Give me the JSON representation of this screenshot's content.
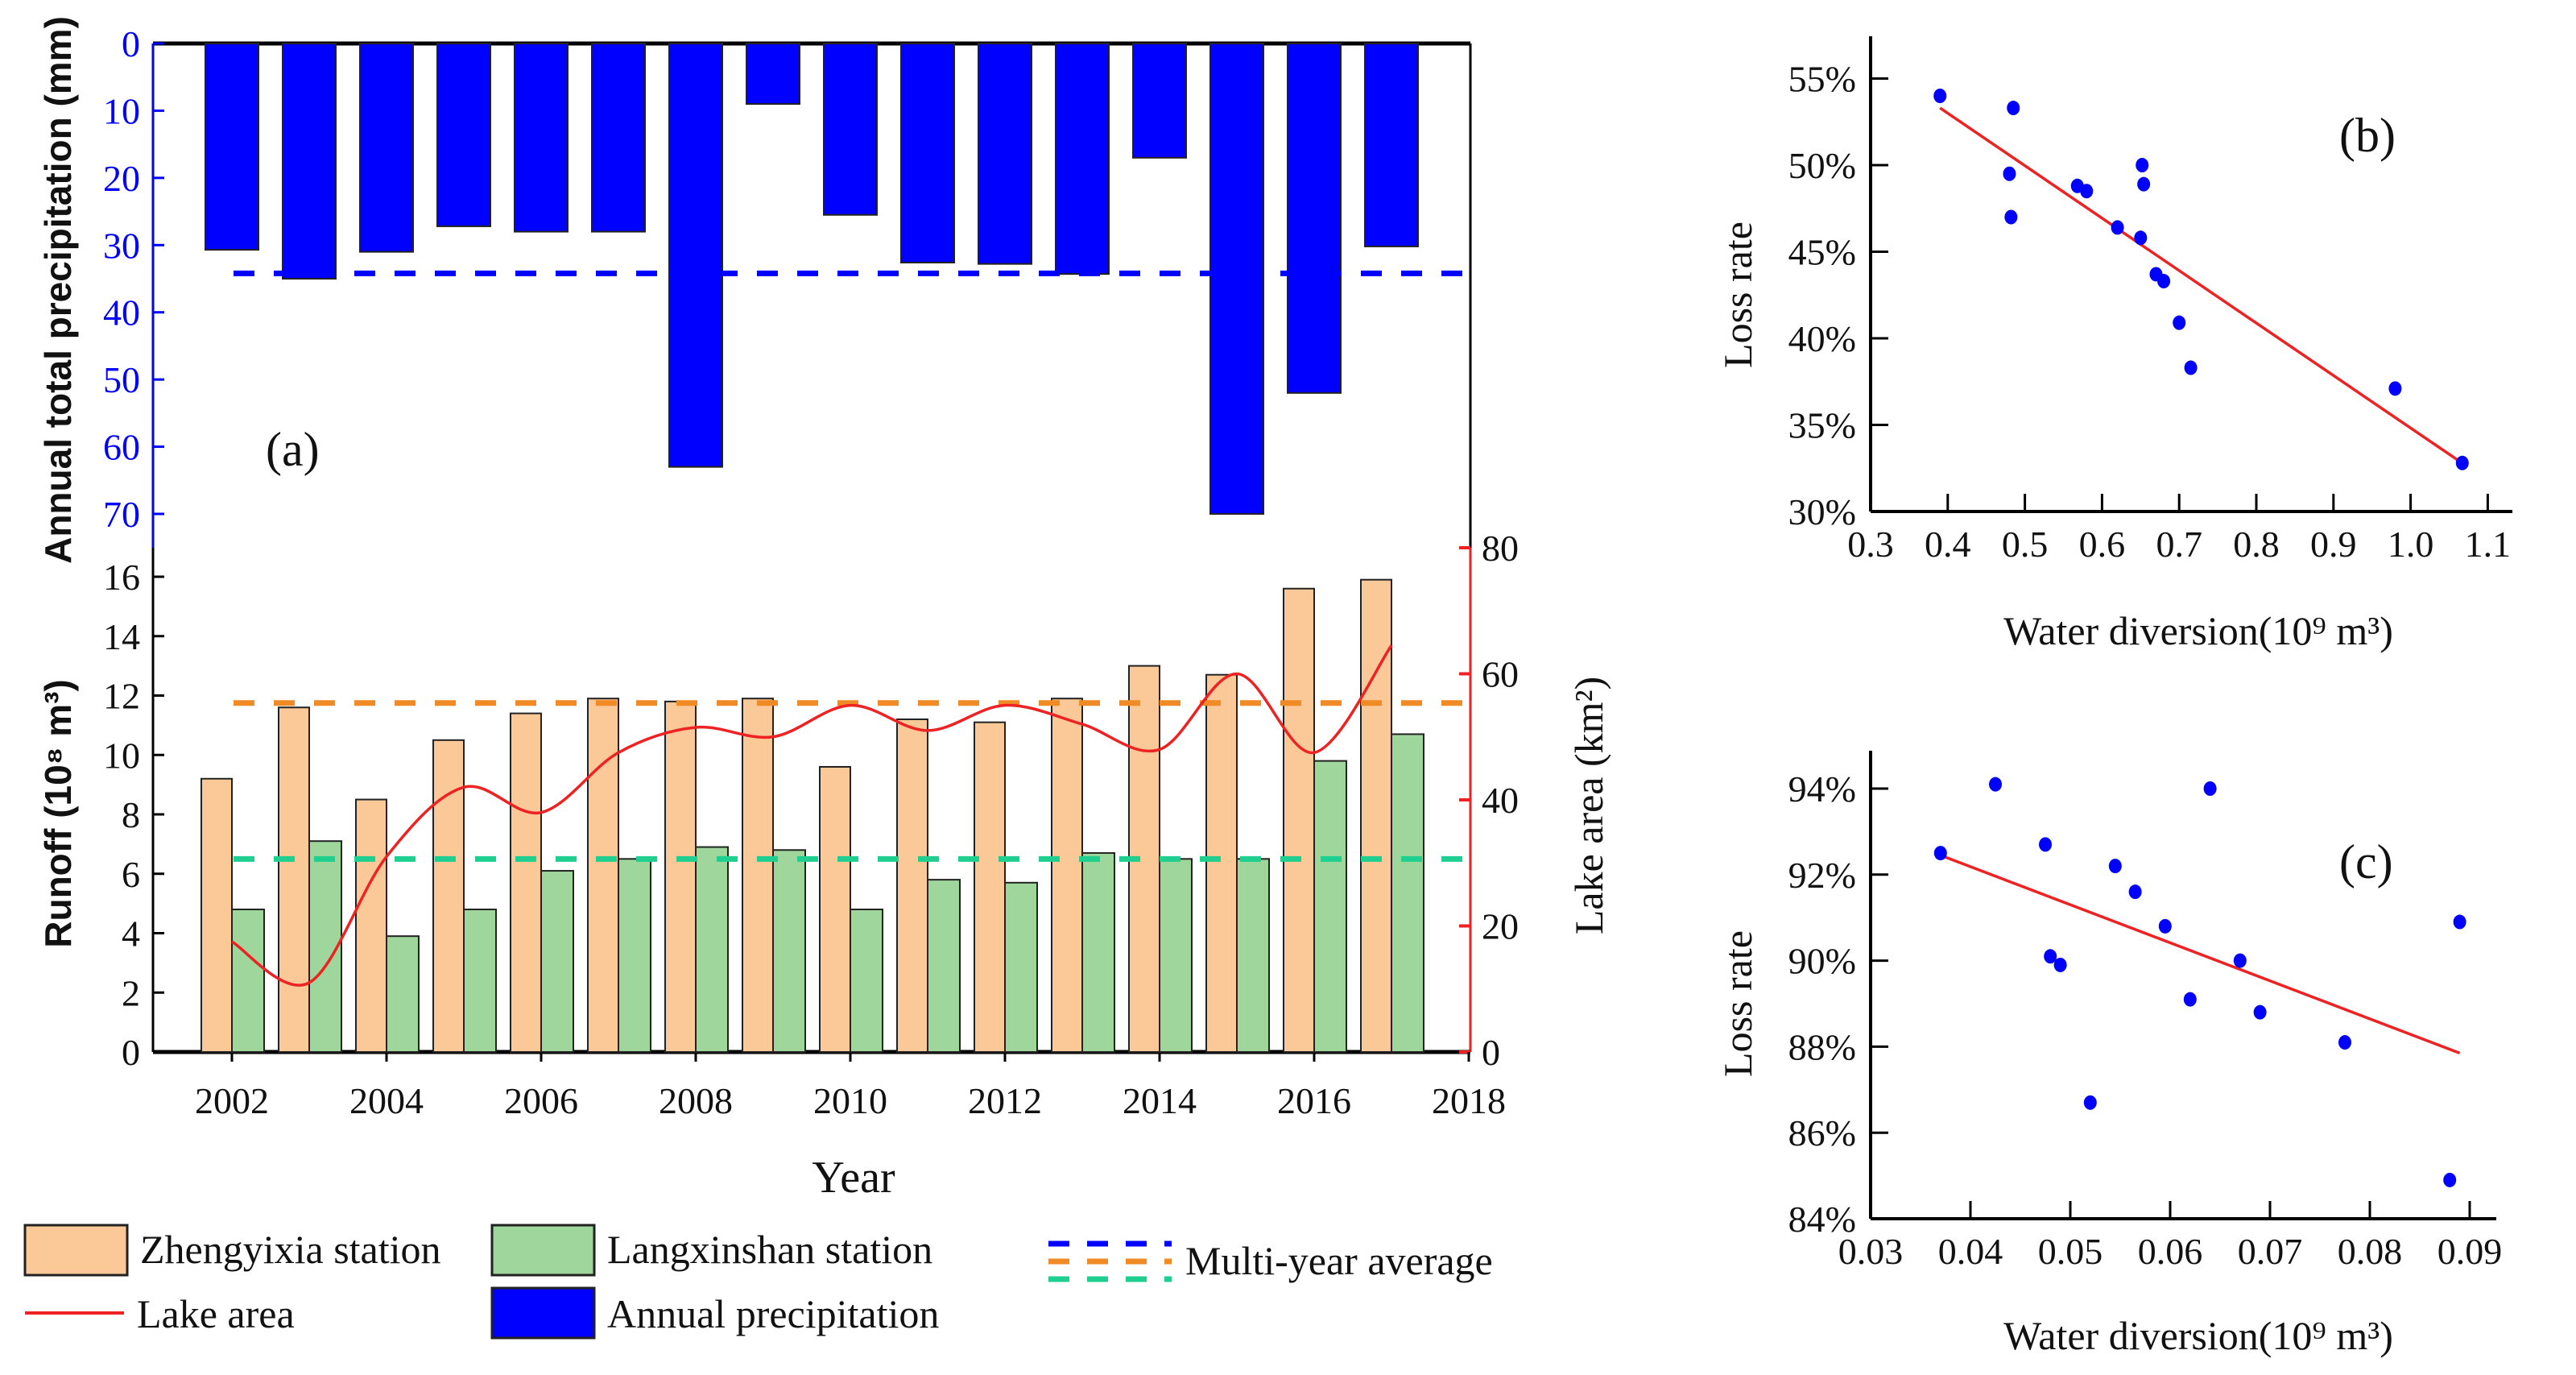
{
  "chart_data": [
    {
      "type": "bar+line",
      "panel_label": "(a)",
      "xlabel": "Year",
      "x_ticks": [
        "2002",
        "2004",
        "2006",
        "2008",
        "2010",
        "2012",
        "2014",
        "2016",
        "2018"
      ],
      "categories": [
        2002,
        2003,
        2004,
        2005,
        2006,
        2007,
        2008,
        2009,
        2010,
        2011,
        2012,
        2013,
        2014,
        2015,
        2016,
        2017
      ],
      "precipitation": {
        "ylabel": "Annual total precipitation (mm)",
        "ylim": [
          0,
          70
        ],
        "y_ticks": [
          "0",
          "10",
          "20",
          "30",
          "40",
          "50",
          "60",
          "70"
        ],
        "axis_inverted": true,
        "values": [
          30.7,
          35.0,
          31.0,
          27.2,
          28.0,
          28.0,
          63.0,
          9.0,
          25.5,
          32.6,
          32.8,
          34.3,
          17.0,
          70.0,
          52.0,
          30.2
        ],
        "average": 34.2,
        "color": "#0000ff"
      },
      "runoff": {
        "ylabel": "Runoff (10⁸ m³)",
        "ylim": [
          0,
          16
        ],
        "y_ticks": [
          "0",
          "2",
          "4",
          "6",
          "8",
          "10",
          "12",
          "14",
          "16"
        ],
        "series": [
          {
            "name": "Zhengyixia station",
            "color": "#fbc897",
            "values": [
              9.2,
              11.6,
              8.5,
              10.5,
              11.4,
              11.9,
              11.8,
              11.9,
              9.6,
              11.2,
              11.1,
              11.9,
              13.0,
              12.7,
              15.6,
              15.9
            ],
            "average": 11.75,
            "avg_color": "#f08a24"
          },
          {
            "name": "Langxinshan station",
            "color": "#9ed69b",
            "values": [
              4.8,
              7.1,
              3.9,
              4.8,
              6.1,
              6.5,
              6.9,
              6.8,
              4.8,
              5.8,
              5.7,
              6.7,
              6.5,
              6.5,
              9.8,
              10.7
            ],
            "average": 6.5,
            "avg_color": "#1fcf8f"
          }
        ]
      },
      "lake_area": {
        "ylabel": "Lake area (km²)",
        "ylim": [
          0,
          80
        ],
        "y_ticks": [
          "0",
          "20",
          "40",
          "60",
          "80"
        ],
        "x": [
          2002,
          2003,
          2004,
          2005,
          2006,
          2007,
          2008,
          2009,
          2010,
          2011,
          2012,
          2013,
          2014,
          2015,
          2016,
          2017
        ],
        "values": [
          17.5,
          11.0,
          31.0,
          42.0,
          38.0,
          47.5,
          51.5,
          50.0,
          55.0,
          51.0,
          55.0,
          52.0,
          48.0,
          60.0,
          47.5,
          64.5
        ],
        "color": "#ee2222"
      },
      "legend": {
        "zhengyixia": "Zhengyixia station",
        "langxinshan": "Langxinshan station",
        "average": "Multi-year average",
        "lake": "Lake area",
        "precip": "Annual precipitation"
      }
    },
    {
      "type": "scatter",
      "panel_label": "(b)",
      "xlabel": "Water diversion(10⁹ m³)",
      "ylabel": "Loss rate",
      "xlim": [
        0.3,
        1.13
      ],
      "ylim": [
        30,
        56
      ],
      "x_ticks": [
        "0.3",
        "0.4",
        "0.5",
        "0.6",
        "0.7",
        "0.8",
        "0.9",
        "1.0",
        "1.1"
      ],
      "y_ticks": [
        "30%",
        "35%",
        "40%",
        "45%",
        "50%",
        "55%"
      ],
      "points": [
        [
          0.39,
          54.0
        ],
        [
          0.485,
          53.3
        ],
        [
          0.48,
          49.5
        ],
        [
          0.482,
          47.0
        ],
        [
          0.568,
          48.8
        ],
        [
          0.58,
          48.5
        ],
        [
          0.62,
          46.4
        ],
        [
          0.65,
          45.8
        ],
        [
          0.652,
          50.0
        ],
        [
          0.654,
          48.9
        ],
        [
          0.67,
          43.7
        ],
        [
          0.68,
          43.3
        ],
        [
          0.7,
          40.9
        ],
        [
          0.715,
          38.3
        ],
        [
          0.98,
          37.1
        ],
        [
          1.067,
          32.8
        ]
      ],
      "fit_line": [
        [
          0.39,
          53.3
        ],
        [
          1.07,
          32.7
        ]
      ],
      "point_color": "#0000ff",
      "line_color": "#ee2222"
    },
    {
      "type": "scatter",
      "panel_label": "(c)",
      "xlabel": "Water diversion(10⁹ m³)",
      "ylabel": "Loss rate",
      "xlim": [
        0.03,
        0.092
      ],
      "ylim": [
        84,
        94.8
      ],
      "x_ticks": [
        "0.03",
        "0.04",
        "0.05",
        "0.06",
        "0.07",
        "0.08",
        "0.09"
      ],
      "y_ticks": [
        "84%",
        "86%",
        "88%",
        "90%",
        "92%",
        "94%"
      ],
      "points": [
        [
          0.037,
          92.5
        ],
        [
          0.0425,
          94.1
        ],
        [
          0.0475,
          92.7
        ],
        [
          0.048,
          90.1
        ],
        [
          0.049,
          89.9
        ],
        [
          0.052,
          86.7
        ],
        [
          0.0545,
          92.2
        ],
        [
          0.0565,
          91.6
        ],
        [
          0.0595,
          90.8
        ],
        [
          0.062,
          89.1
        ],
        [
          0.064,
          94.0
        ],
        [
          0.067,
          90.0
        ],
        [
          0.069,
          88.8
        ],
        [
          0.0775,
          88.1
        ],
        [
          0.088,
          84.9
        ],
        [
          0.089,
          90.9
        ]
      ],
      "fit_line": [
        [
          0.037,
          92.45
        ],
        [
          0.089,
          87.85
        ]
      ],
      "point_color": "#0000ff",
      "line_color": "#ee2222"
    }
  ]
}
